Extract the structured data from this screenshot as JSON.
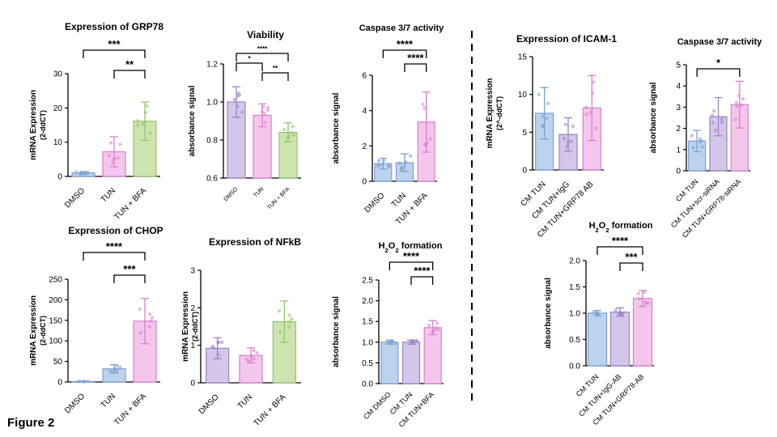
{
  "figure_label": "Figure 2",
  "colors": {
    "blue_fill": "#bcd3ee",
    "blue_stroke": "#7c9fd0",
    "purple_fill": "#d4c6ea",
    "purple_stroke": "#9a83c7",
    "pink_fill": "#f4c6ec",
    "pink_stroke": "#d77fcb",
    "green_fill": "#cde4b0",
    "green_stroke": "#94c36a"
  },
  "chart_data": [
    {
      "id": "grp78-expression",
      "type": "bar",
      "title": "Expression of GRP78",
      "ylabel": "mRNA Expression",
      "ylabel_sub": "(2-ddCT)",
      "categories": [
        "DMSO",
        "TUN",
        "TUN + BFA"
      ],
      "colors": [
        "blue",
        "pink",
        "green"
      ],
      "values": [
        1.0,
        7.2,
        16.1
      ],
      "errors": [
        0.4,
        4.4,
        5.6
      ],
      "ylim": [
        0,
        30
      ],
      "yticks": [
        "0",
        "10",
        "20",
        "30"
      ],
      "significance": [
        {
          "from": 0,
          "to": 2,
          "label": "***"
        },
        {
          "from": 1,
          "to": 2,
          "label": "**"
        }
      ]
    },
    {
      "id": "viability",
      "type": "bar",
      "title": "Viability",
      "ylabel": "absorbance signal",
      "categories": [
        "DMSO",
        "TUN",
        "TUN + BFA"
      ],
      "colors": [
        "purple",
        "pink",
        "green"
      ],
      "values": [
        1.0,
        0.93,
        0.84
      ],
      "errors": [
        0.08,
        0.06,
        0.05
      ],
      "ylim": [
        0.6,
        1.2
      ],
      "yticks": [
        "0.6",
        "0.8",
        "1.0",
        "1.2"
      ],
      "significance": [
        {
          "from": 0,
          "to": 2,
          "label": "****"
        },
        {
          "from": 0,
          "to": 1,
          "label": "*"
        },
        {
          "from": 1,
          "to": 2,
          "label": "**"
        }
      ]
    },
    {
      "id": "caspase-left",
      "type": "bar",
      "title": "Caspase 3/7 activity",
      "ylabel": "absorbance signal",
      "categories": [
        "DMSO",
        "TUN",
        "TUN + BFA"
      ],
      "colors": [
        "blue",
        "blue",
        "pink"
      ],
      "values": [
        1.0,
        1.05,
        3.35
      ],
      "errors": [
        0.3,
        0.5,
        1.7
      ],
      "ylim": [
        0,
        6
      ],
      "yticks": [
        "0",
        "2",
        "4",
        "6"
      ],
      "significance": [
        {
          "from": 0,
          "to": 2,
          "label": "****"
        },
        {
          "from": 1,
          "to": 2,
          "label": "****"
        }
      ]
    },
    {
      "id": "chop-expression",
      "type": "bar",
      "title": "Expression of CHOP",
      "ylabel": "mRNA Expression",
      "ylabel_sub": "(2-ddCT)",
      "categories": [
        "DMSO",
        "TUN",
        "TUN + BFA"
      ],
      "colors": [
        "blue",
        "blue",
        "pink"
      ],
      "values": [
        1.0,
        32,
        148
      ],
      "errors": [
        0.5,
        10,
        55
      ],
      "ylim": [
        0,
        250
      ],
      "yticks": [
        "0",
        "50",
        "100",
        "150",
        "200",
        "250"
      ],
      "significance": [
        {
          "from": 0,
          "to": 2,
          "label": "****"
        },
        {
          "from": 1,
          "to": 2,
          "label": "***"
        }
      ]
    },
    {
      "id": "nfkb-expression",
      "type": "bar",
      "title": "Expression of NFkB",
      "ylabel": "mRNA Expression",
      "ylabel_sub": "(2-ddCT)",
      "categories": [
        "DMSO",
        "TUN",
        "TUN + BFA"
      ],
      "colors": [
        "purple",
        "pink",
        "green"
      ],
      "values": [
        0.92,
        0.73,
        1.63
      ],
      "errors": [
        0.28,
        0.2,
        0.55
      ],
      "ylim": [
        0,
        3
      ],
      "yticks": [
        "0",
        "1",
        "2",
        "3"
      ],
      "significance": []
    },
    {
      "id": "h2o2-left",
      "type": "bar",
      "title": "H2O2 formation",
      "ylabel": "absorbance signal",
      "categories": [
        "CM DMSO",
        "CM TUN",
        "CM TUN+BFA"
      ],
      "colors": [
        "blue",
        "purple",
        "pink"
      ],
      "values": [
        1.0,
        1.0,
        1.35
      ],
      "errors": [
        0.05,
        0.05,
        0.17
      ],
      "ylim": [
        0,
        2.5
      ],
      "yticks": [
        "0.0",
        "0.5",
        "1.0",
        "1.5",
        "2.0",
        "2.5"
      ],
      "significance": [
        {
          "from": 0,
          "to": 2,
          "label": "****"
        },
        {
          "from": 1,
          "to": 2,
          "label": "****"
        }
      ]
    },
    {
      "id": "icam1-expression",
      "type": "bar",
      "title": "Expression of ICAM-1",
      "ylabel": "mRNA Expression",
      "ylabel_sub": "(2^-ddCT)",
      "categories": [
        "CM TUN",
        "CM TUN+IgG",
        "CM TUN+GRP78 AB"
      ],
      "colors": [
        "blue",
        "purple",
        "pink"
      ],
      "values": [
        7.5,
        4.7,
        8.2
      ],
      "errors": [
        3.4,
        2.2,
        4.3
      ],
      "ylim": [
        0,
        15
      ],
      "yticks": [
        "0",
        "5",
        "10",
        "15"
      ],
      "significance": []
    },
    {
      "id": "caspase-right",
      "type": "bar",
      "title": "Caspase 3/7 activity",
      "ylabel": "absorbance signal",
      "categories": [
        "CM TUN",
        "CM TUN+scr-siRNA",
        "CM TUN+GRP78-siRNA"
      ],
      "colors": [
        "blue",
        "purple",
        "pink"
      ],
      "values": [
        1.4,
        2.55,
        3.12
      ],
      "errors": [
        0.5,
        0.9,
        1.1
      ],
      "ylim": [
        0,
        5
      ],
      "yticks": [
        "0",
        "1",
        "2",
        "3",
        "4",
        "5"
      ],
      "significance": [
        {
          "from": 0,
          "to": 2,
          "label": "*"
        }
      ]
    },
    {
      "id": "h2o2-right",
      "type": "bar",
      "title": "H2O2 formation",
      "ylabel": "absorbance signal",
      "categories": [
        "CM TUN",
        "CM TUN+IgG-AB",
        "CM TUN+GRP78-AB"
      ],
      "colors": [
        "blue",
        "purple",
        "pink"
      ],
      "values": [
        1.0,
        1.02,
        1.28
      ],
      "errors": [
        0.05,
        0.08,
        0.15
      ],
      "ylim": [
        0,
        2.0
      ],
      "yticks": [
        "0.0",
        "0.5",
        "1.0",
        "1.5",
        "2.0"
      ],
      "significance": [
        {
          "from": 0,
          "to": 2,
          "label": "****"
        },
        {
          "from": 1,
          "to": 2,
          "label": "***"
        }
      ]
    }
  ]
}
